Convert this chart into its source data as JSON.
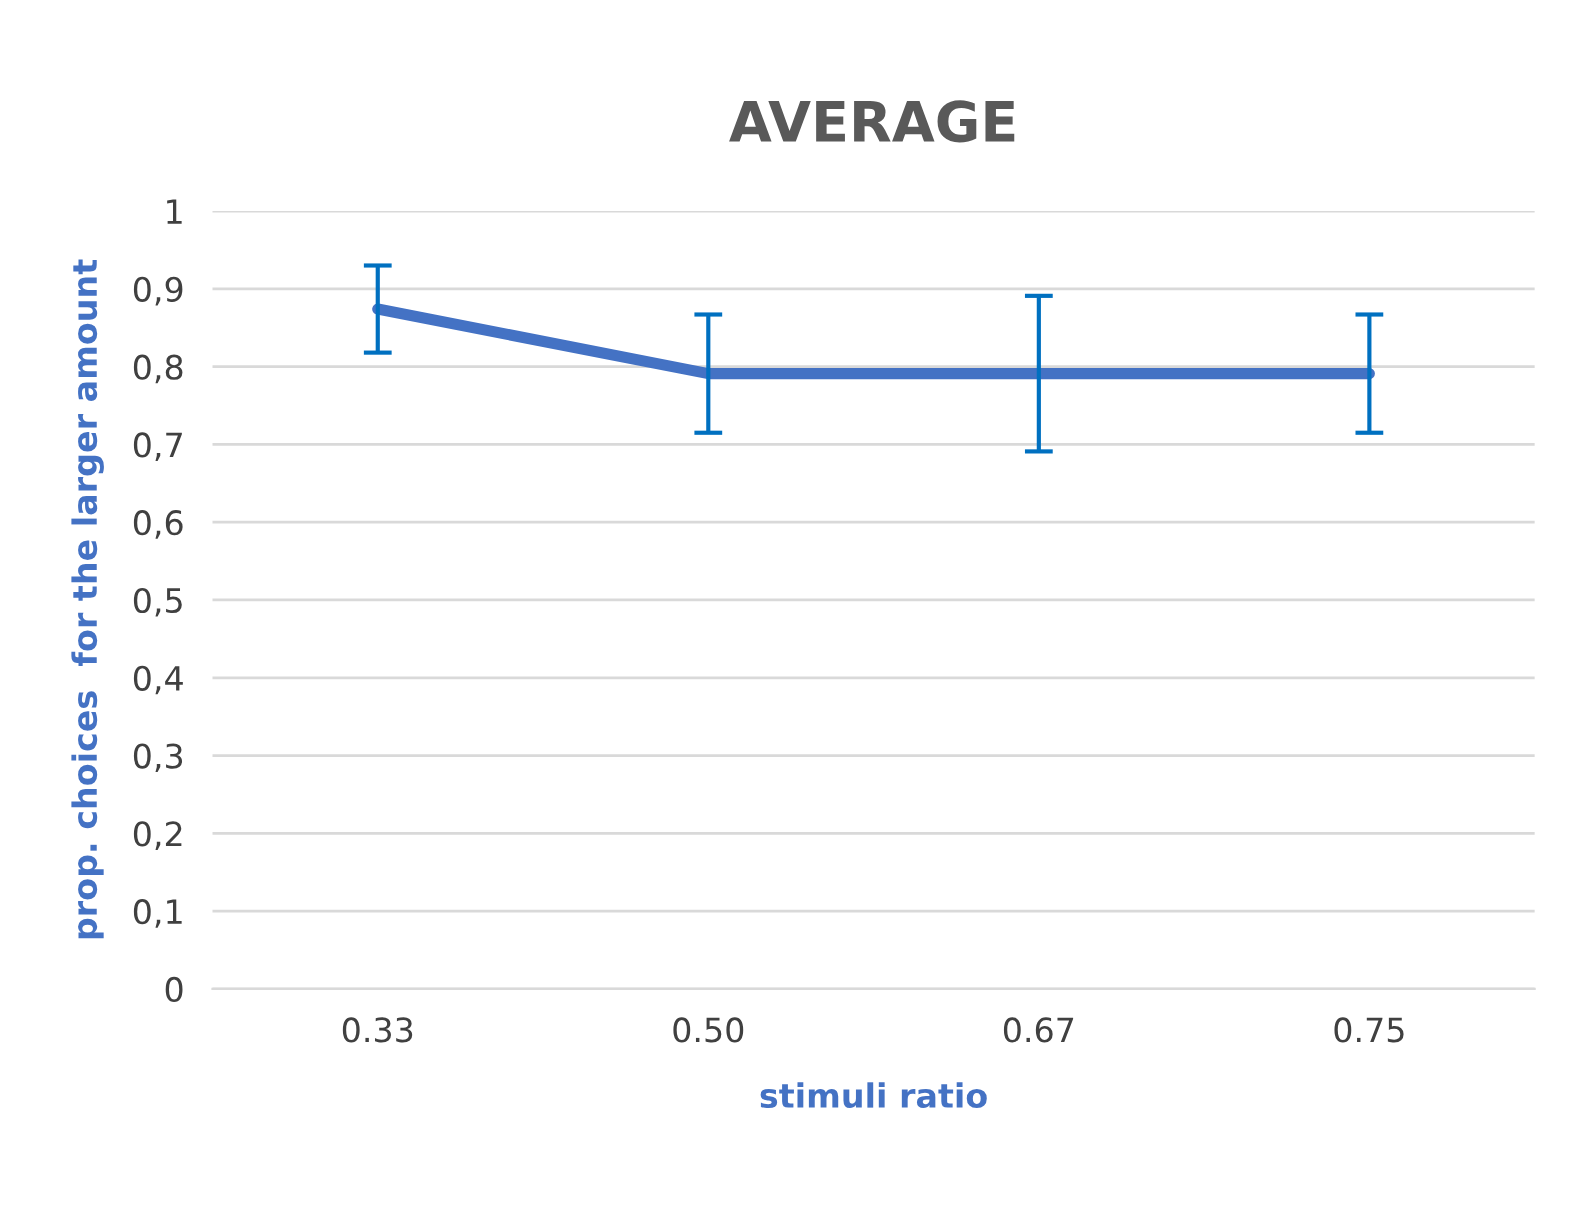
{
  "chart_data": {
    "type": "line",
    "title": "AVERAGE",
    "xlabel": "stimuli ratio",
    "ylabel": "prop. choices  for the larger amount",
    "categories": [
      "0.33",
      "0.50",
      "0.67",
      "0.75"
    ],
    "series": [
      {
        "color": "#4472c4",
        "values": [
          0.874,
          0.791,
          0.791,
          0.791
        ],
        "errors": [
          0.056,
          0.076,
          0.1,
          0.076
        ]
      }
    ],
    "ylim": [
      0,
      1
    ],
    "yticks": [
      {
        "value": 0,
        "label": "0"
      },
      {
        "value": 0.1,
        "label": "0,1"
      },
      {
        "value": 0.2,
        "label": "0,2"
      },
      {
        "value": 0.3,
        "label": "0,3"
      },
      {
        "value": 0.4,
        "label": "0,4"
      },
      {
        "value": 0.5,
        "label": "0,5"
      },
      {
        "value": 0.6,
        "label": "0,6"
      },
      {
        "value": 0.7,
        "label": "0,7"
      },
      {
        "value": 0.8,
        "label": "0,8"
      },
      {
        "value": 0.9,
        "label": "0,9"
      },
      {
        "value": 1,
        "label": "1"
      }
    ],
    "grid": "y",
    "legend": false,
    "marker": "none",
    "line_style": "solid"
  }
}
